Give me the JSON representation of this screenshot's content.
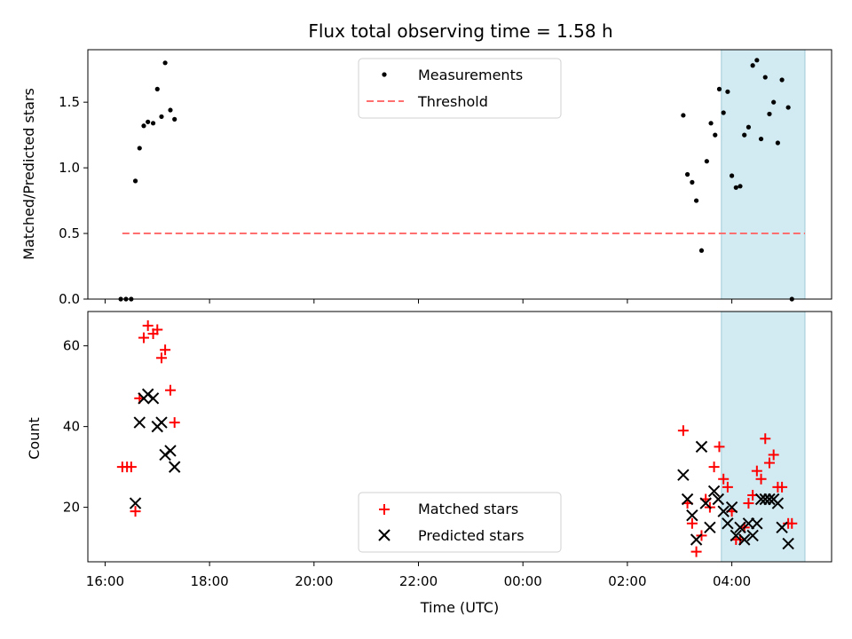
{
  "chart_data": [
    {
      "type": "scatter",
      "title": "Flux total observing time = 1.58 h",
      "xlabel": "",
      "ylabel": "Matched/Predicted stars",
      "x_unit": "hours since 16:00 UTC",
      "xlim": [
        -0.33,
        13.91
      ],
      "ylim": [
        0.0,
        1.9
      ],
      "yticks": [
        0.0,
        0.5,
        1.0,
        1.5
      ],
      "ytick_labels": [
        "0.0",
        "0.5",
        "1.0",
        "1.5"
      ],
      "xticks": [
        0,
        2,
        4,
        6,
        8,
        10,
        12
      ],
      "highlight_span": [
        11.8,
        13.4
      ],
      "highlight_color": "#add8e6",
      "legend": [
        "Measurements",
        "Threshold"
      ],
      "threshold": {
        "name": "Threshold",
        "y": 0.5,
        "x_range": [
          0.33,
          13.4
        ],
        "color": "#ff6f6f"
      },
      "series": [
        {
          "name": "Measurements",
          "color": "#000000",
          "points": [
            [
              0.3,
              0.0
            ],
            [
              0.4,
              0.0
            ],
            [
              0.5,
              0.0
            ],
            [
              0.58,
              0.9
            ],
            [
              0.66,
              1.15
            ],
            [
              0.74,
              1.32
            ],
            [
              0.82,
              1.35
            ],
            [
              0.92,
              1.34
            ],
            [
              1.0,
              1.6
            ],
            [
              1.08,
              1.39
            ],
            [
              1.15,
              1.8
            ],
            [
              1.25,
              1.44
            ],
            [
              1.33,
              1.37
            ],
            [
              11.07,
              1.4
            ],
            [
              11.15,
              0.95
            ],
            [
              11.24,
              0.89
            ],
            [
              11.32,
              0.75
            ],
            [
              11.42,
              0.37
            ],
            [
              11.52,
              1.05
            ],
            [
              11.6,
              1.34
            ],
            [
              11.68,
              1.25
            ],
            [
              11.76,
              1.6
            ],
            [
              11.84,
              1.42
            ],
            [
              11.92,
              1.58
            ],
            [
              12.0,
              0.94
            ],
            [
              12.08,
              0.85
            ],
            [
              12.16,
              0.86
            ],
            [
              12.24,
              1.25
            ],
            [
              12.32,
              1.31
            ],
            [
              12.4,
              1.78
            ],
            [
              12.48,
              1.82
            ],
            [
              12.56,
              1.22
            ],
            [
              12.64,
              1.69
            ],
            [
              12.72,
              1.41
            ],
            [
              12.8,
              1.5
            ],
            [
              12.88,
              1.19
            ],
            [
              12.96,
              1.67
            ],
            [
              13.08,
              1.46
            ],
            [
              13.15,
              0.0
            ]
          ]
        }
      ]
    },
    {
      "type": "scatter",
      "title": "",
      "xlabel": "Time (UTC)",
      "ylabel": "Count",
      "x_unit": "hours since 16:00 UTC",
      "xlim": [
        -0.33,
        13.91
      ],
      "ylim": [
        6.5,
        68.5
      ],
      "yticks": [
        20,
        40,
        60
      ],
      "ytick_labels": [
        "20",
        "40",
        "60"
      ],
      "xticks": [
        0,
        2,
        4,
        6,
        8,
        10,
        12
      ],
      "xtick_labels": [
        "16:00",
        "18:00",
        "20:00",
        "22:00",
        "00:00",
        "02:00",
        "04:00"
      ],
      "highlight_span": [
        11.8,
        13.4
      ],
      "highlight_color": "#add8e6",
      "legend": [
        "Matched stars",
        "Predicted stars"
      ],
      "series": [
        {
          "name": "Matched stars",
          "marker": "plus",
          "color": "#ff0000",
          "points": [
            [
              0.33,
              30
            ],
            [
              0.42,
              30
            ],
            [
              0.5,
              30
            ],
            [
              0.58,
              19
            ],
            [
              0.66,
              47
            ],
            [
              0.74,
              62
            ],
            [
              0.82,
              65
            ],
            [
              0.92,
              63
            ],
            [
              1.0,
              64
            ],
            [
              1.08,
              57
            ],
            [
              1.15,
              59
            ],
            [
              1.25,
              49
            ],
            [
              1.33,
              41
            ],
            [
              11.07,
              39
            ],
            [
              11.15,
              21
            ],
            [
              11.24,
              16
            ],
            [
              11.32,
              9
            ],
            [
              11.42,
              13
            ],
            [
              11.5,
              22
            ],
            [
              11.58,
              20
            ],
            [
              11.66,
              30
            ],
            [
              11.76,
              35
            ],
            [
              11.84,
              27
            ],
            [
              11.92,
              25
            ],
            [
              12.0,
              19
            ],
            [
              12.08,
              12
            ],
            [
              12.16,
              12
            ],
            [
              12.24,
              15
            ],
            [
              12.32,
              21
            ],
            [
              12.4,
              23
            ],
            [
              12.48,
              29
            ],
            [
              12.56,
              27
            ],
            [
              12.64,
              37
            ],
            [
              12.72,
              31
            ],
            [
              12.8,
              33
            ],
            [
              12.88,
              25
            ],
            [
              12.96,
              25
            ],
            [
              13.08,
              16
            ],
            [
              13.15,
              16
            ]
          ]
        },
        {
          "name": "Predicted stars",
          "marker": "x",
          "color": "#000000",
          "points": [
            [
              0.58,
              21
            ],
            [
              0.66,
              41
            ],
            [
              0.74,
              47
            ],
            [
              0.82,
              48
            ],
            [
              0.92,
              47
            ],
            [
              1.0,
              40
            ],
            [
              1.08,
              41
            ],
            [
              1.15,
              33
            ],
            [
              1.25,
              34
            ],
            [
              1.33,
              30
            ],
            [
              11.07,
              28
            ],
            [
              11.15,
              22
            ],
            [
              11.24,
              18
            ],
            [
              11.32,
              12
            ],
            [
              11.42,
              35
            ],
            [
              11.5,
              21
            ],
            [
              11.58,
              15
            ],
            [
              11.66,
              24
            ],
            [
              11.74,
              22
            ],
            [
              11.84,
              19
            ],
            [
              11.92,
              16
            ],
            [
              12.0,
              20
            ],
            [
              12.08,
              13
            ],
            [
              12.16,
              15
            ],
            [
              12.24,
              12
            ],
            [
              12.32,
              16
            ],
            [
              12.4,
              13
            ],
            [
              12.48,
              16
            ],
            [
              12.56,
              22
            ],
            [
              12.64,
              22
            ],
            [
              12.72,
              22
            ],
            [
              12.8,
              22
            ],
            [
              12.88,
              21
            ],
            [
              12.96,
              15
            ],
            [
              13.08,
              11
            ]
          ]
        }
      ]
    }
  ]
}
